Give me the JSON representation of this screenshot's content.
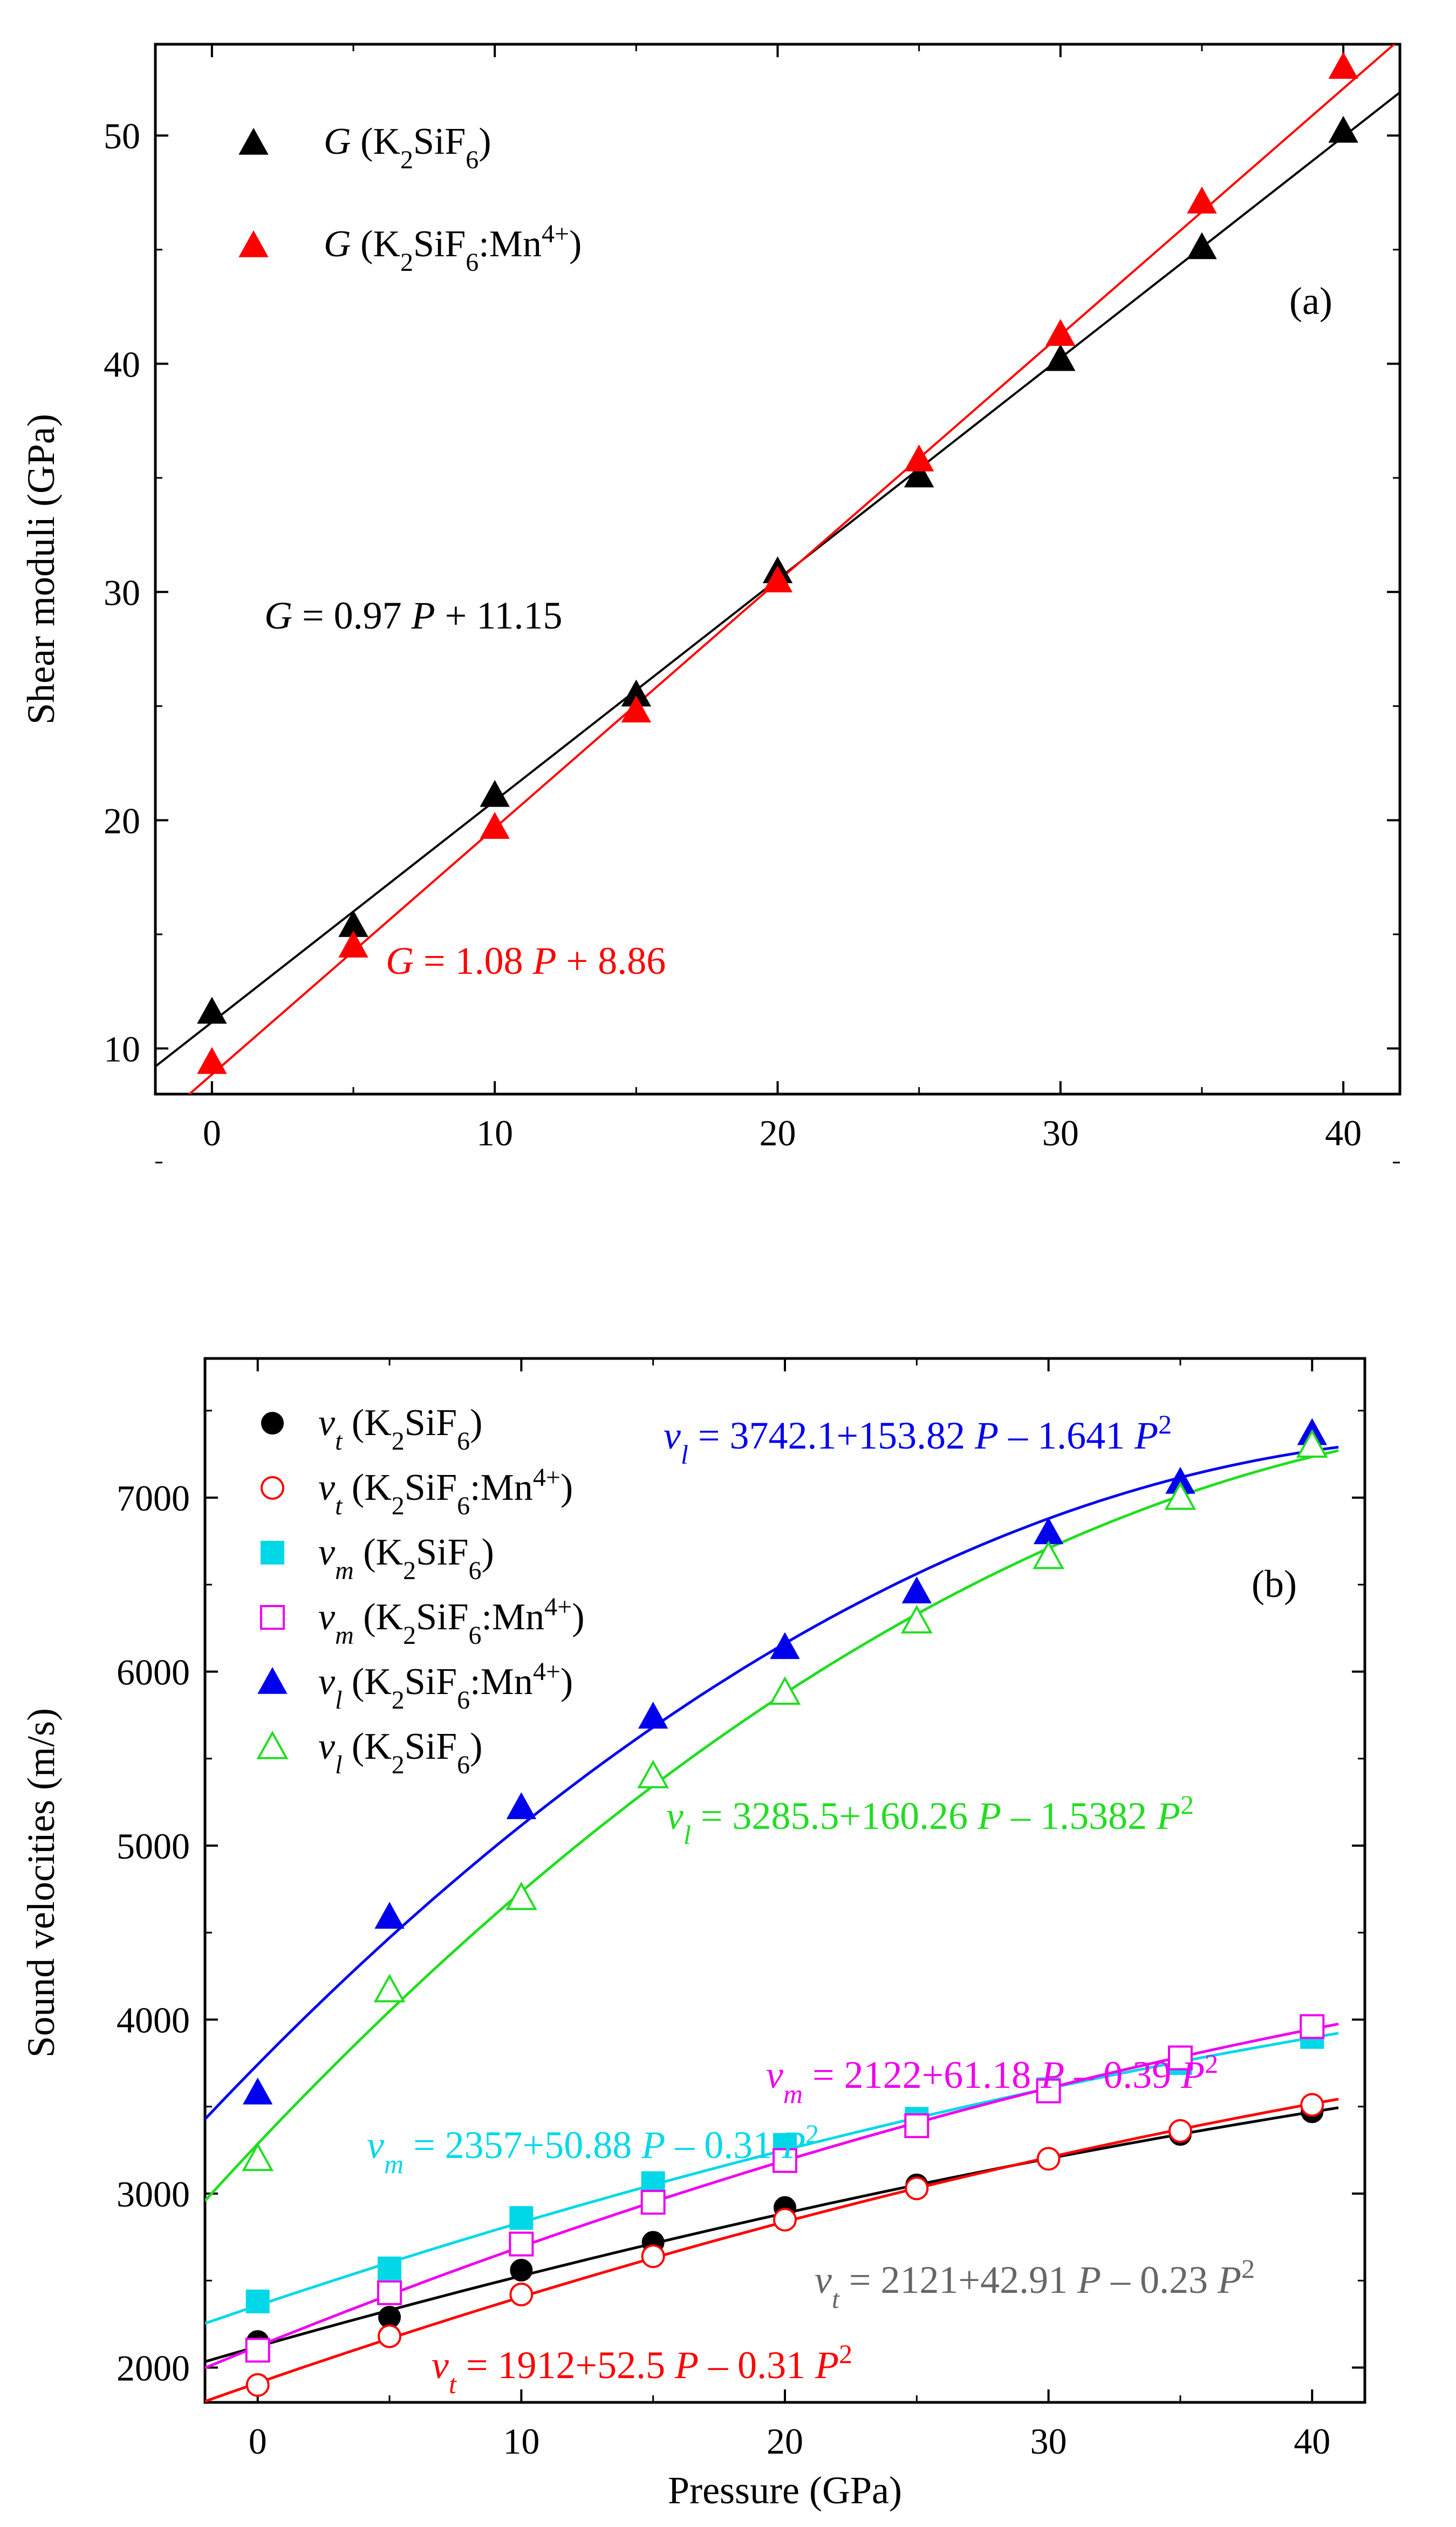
{
  "chart_data": [
    {
      "type": "scatter",
      "panel": "(a)",
      "xlabel": "",
      "ylabel": "Shear moduli (GPa)",
      "xlim": [
        -2,
        42
      ],
      "ylim": [
        8,
        54
      ],
      "xticks": [
        0,
        10,
        20,
        30,
        40
      ],
      "yticks": [
        10,
        20,
        30,
        40,
        50
      ],
      "grid": false,
      "legend_position": "top-left",
      "series": [
        {
          "name": "G (K2SiF6)",
          "legend": {
            "italic": "G",
            "pre": " (K",
            "sub": "2",
            "post": "SiF",
            "sub2": "6",
            "tail": ")",
            "sup": ""
          },
          "color": "#000000",
          "marker": "triangle-filled",
          "x": [
            0,
            5,
            10,
            15,
            20,
            25,
            30,
            35,
            40
          ],
          "y": [
            11.6,
            15.4,
            21.1,
            25.5,
            30.9,
            35.1,
            40.2,
            45.1,
            50.2
          ],
          "fit": {
            "slope": 0.97,
            "intercept": 11.15
          },
          "equation": {
            "lhs": "G",
            "rhs": " = 0.97 ",
            "var": "P",
            "tail": " + 11.15"
          }
        },
        {
          "name": "G (K2SiF6:Mn4+)",
          "legend": {
            "italic": "G",
            "pre": " (K",
            "sub": "2",
            "post": "SiF",
            "sub2": "6",
            "tail": ":Mn",
            "sup": "4+",
            "end": ")"
          },
          "color": "#ff0000",
          "marker": "triangle-filled",
          "x": [
            0,
            5,
            10,
            15,
            20,
            25,
            30,
            35,
            40
          ],
          "y": [
            9.4,
            14.5,
            19.7,
            24.8,
            30.5,
            35.8,
            41.3,
            47.1,
            53.0
          ],
          "fit": {
            "slope": 1.08,
            "intercept": 8.86
          },
          "equation": {
            "lhs": "G",
            "rhs": " = 1.08 ",
            "var": "P",
            "tail": " + 8.86"
          }
        }
      ]
    },
    {
      "type": "scatter",
      "panel": "(b)",
      "xlabel": "Pressure (GPa)",
      "ylabel": "Sound velocities (m/s)",
      "xlim": [
        -2,
        42
      ],
      "ylim": [
        1800,
        7800
      ],
      "xticks": [
        0,
        10,
        20,
        30,
        40
      ],
      "yticks": [
        2000,
        3000,
        4000,
        5000,
        6000,
        7000
      ],
      "grid": false,
      "legend_position": "top-left",
      "series": [
        {
          "name": "vt (K2SiF6)",
          "legend": {
            "v": "v",
            "s": "t",
            "pre": " (K",
            "sub": "2",
            "post": "SiF",
            "sub2": "6",
            "tail": ")",
            "sup": ""
          },
          "color": "#000000",
          "fit_color": "#000000",
          "marker": "circle-filled",
          "x": [
            0,
            5,
            10,
            15,
            20,
            25,
            30,
            35,
            40
          ],
          "y": [
            2150,
            2290,
            2560,
            2720,
            2920,
            3050,
            3200,
            3340,
            3470
          ],
          "fit": {
            "a0": 2121,
            "a1": 42.91,
            "a2": -0.23
          }
        },
        {
          "name": "vt (K2SiF6:Mn4+)",
          "legend": {
            "v": "v",
            "s": "t",
            "pre": " (K",
            "sub": "2",
            "post": "SiF",
            "sub2": "6",
            "tail": ":Mn",
            "sup": "4+",
            "end": ")"
          },
          "color": "#ff0000",
          "fit_color": "#ff0000",
          "marker": "circle-open",
          "x": [
            0,
            5,
            10,
            15,
            20,
            25,
            30,
            35,
            40
          ],
          "y": [
            1900,
            2180,
            2420,
            2640,
            2850,
            3030,
            3200,
            3360,
            3510
          ],
          "fit": {
            "a0": 1912,
            "a1": 52.5,
            "a2": -0.31
          }
        },
        {
          "name": "vm (K2SiF6)",
          "legend": {
            "v": "v",
            "s": "m",
            "pre": " (K",
            "sub": "2",
            "post": "SiF",
            "sub2": "6",
            "tail": ")",
            "sup": ""
          },
          "color": "#00d8e8",
          "fit_color": "#00d8e8",
          "marker": "square-filled",
          "x": [
            0,
            5,
            10,
            15,
            20,
            25,
            30,
            35,
            40
          ],
          "y": [
            2380,
            2570,
            2860,
            3060,
            3280,
            3430,
            3600,
            3750,
            3900
          ],
          "fit": {
            "a0": 2357,
            "a1": 50.88,
            "a2": -0.31
          }
        },
        {
          "name": "vm (K2SiF6:Mn4+)",
          "legend": {
            "v": "v",
            "s": "m",
            "pre": " (K",
            "sub": "2",
            "post": "SiF",
            "sub2": "6",
            "tail": ":Mn",
            "sup": "4+",
            "end": ")"
          },
          "color": "#ee00ee",
          "fit_color": "#ee00ee",
          "marker": "square-open",
          "x": [
            0,
            5,
            10,
            15,
            20,
            25,
            30,
            35,
            40
          ],
          "y": [
            2100,
            2430,
            2710,
            2950,
            3190,
            3390,
            3590,
            3780,
            3960
          ],
          "fit": {
            "a0": 2122,
            "a1": 61.18,
            "a2": -0.39
          }
        },
        {
          "name": "vl (K2SiF6:Mn4+)",
          "legend": {
            "v": "v",
            "s": "l",
            "pre": " (K",
            "sub": "2",
            "post": "SiF",
            "sub2": "6",
            "tail": ":Mn",
            "sup": "4+",
            "end": ")"
          },
          "color": "#0000ee",
          "fit_color": "#0000ee",
          "marker": "triangle-filled",
          "x": [
            0,
            5,
            10,
            15,
            20,
            25,
            30,
            35,
            40
          ],
          "y": [
            3580,
            4590,
            5220,
            5740,
            6140,
            6460,
            6800,
            7090,
            7370
          ],
          "fit": {
            "a0": 3742.1,
            "a1": 153.82,
            "a2": -1.641
          }
        },
        {
          "name": "vl (K2SiF6)",
          "legend": {
            "v": "v",
            "s": "l",
            "pre": " (K",
            "sub": "2",
            "post": "SiF",
            "sub2": "6",
            "tail": ")",
            "sup": ""
          },
          "color": "#22dd22",
          "fit_color": "#22dd22",
          "marker": "triangle-open",
          "x": [
            0,
            5,
            10,
            15,
            20,
            25,
            30,
            35,
            40
          ],
          "y": [
            3200,
            4170,
            4700,
            5400,
            5880,
            6290,
            6660,
            7000,
            7300
          ],
          "fit": {
            "a0": 3285.5,
            "a1": 160.26,
            "a2": -1.5382
          }
        }
      ],
      "equations": [
        {
          "v": "v",
          "s": "l",
          "text": " = 3742.1+153.82 ",
          "var": "P",
          "mid": " – 1.641 ",
          "var2": "P",
          "sup": "2",
          "color": "#0000ee"
        },
        {
          "v": "v",
          "s": "l",
          "text": " = 3285.5+160.26 ",
          "var": "P",
          "mid": " – 1.5382 ",
          "var2": "P",
          "sup": "2",
          "color": "#22dd22"
        },
        {
          "v": "v",
          "s": "m",
          "text": " = 2122+61.18 ",
          "var": "P",
          "mid": " – 0.39 ",
          "var2": "P",
          "sup": "2",
          "color": "#ee00ee"
        },
        {
          "v": "v",
          "s": "m",
          "text": " = 2357+50.88 ",
          "var": "P",
          "mid": " – 0.31 ",
          "var2": "P",
          "sup": "2",
          "color": "#00d8e8"
        },
        {
          "v": "v",
          "s": "t",
          "text": " = 2121+42.91 ",
          "var": "P",
          "mid": " – 0.23 ",
          "var2": "P",
          "sup": "2",
          "color": "#666666"
        },
        {
          "v": "v",
          "s": "t",
          "text": " = 1912+52.5 ",
          "var": "P",
          "mid": " – 0.31 ",
          "var2": "P",
          "sup": "2",
          "color": "#ff0000"
        }
      ]
    }
  ]
}
